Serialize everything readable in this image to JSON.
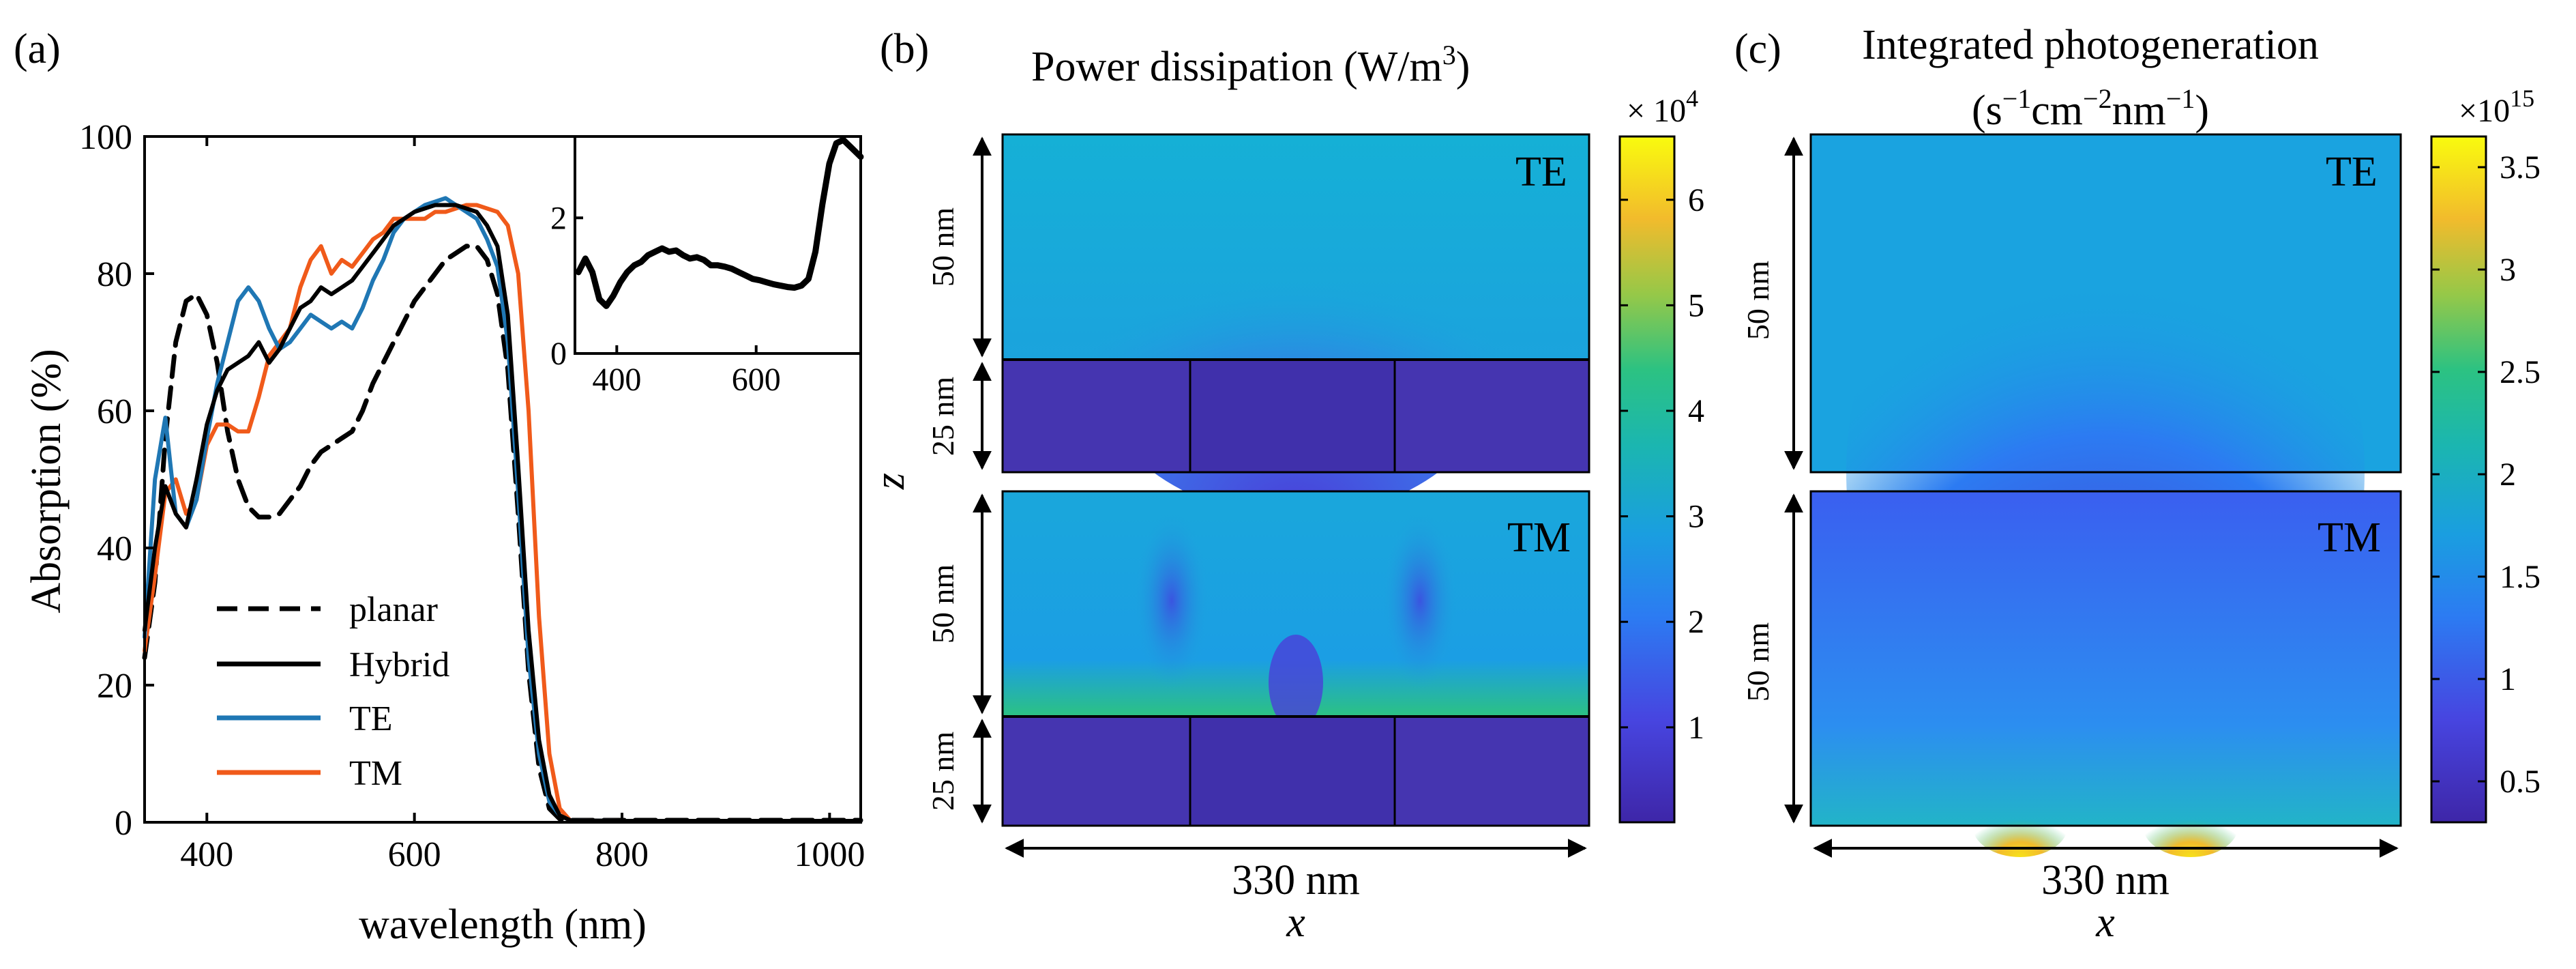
{
  "chart_data": [
    {
      "panel_label": "(a)",
      "type": "line",
      "xlabel": "wavelength (nm)",
      "ylabel": "Absorption (%)",
      "xlim": [
        340,
        1030
      ],
      "ylim": [
        0,
        100
      ],
      "xticks": [
        400,
        600,
        800,
        1000
      ],
      "yticks": [
        0,
        20,
        40,
        60,
        80,
        100
      ],
      "colors": {
        "planar": "#000000",
        "Hybrid": "#000000",
        "TE": "#1f77b4",
        "TM": "#f05a1a"
      },
      "legend": [
        {
          "label": "planar",
          "style": "dashed"
        },
        {
          "label": "Hybrid",
          "style": "solid"
        },
        {
          "label": "TE",
          "style": "solid"
        },
        {
          "label": "TM",
          "style": "solid"
        }
      ],
      "series": [
        {
          "name": "planar",
          "x": [
            340,
            350,
            360,
            370,
            380,
            390,
            400,
            410,
            420,
            430,
            440,
            450,
            460,
            470,
            480,
            490,
            500,
            510,
            520,
            530,
            540,
            550,
            560,
            570,
            580,
            590,
            600,
            610,
            620,
            630,
            640,
            650,
            660,
            670,
            680,
            690,
            700,
            710,
            720,
            730,
            740,
            750,
            800,
            850,
            900,
            950,
            1000,
            1030
          ],
          "y": [
            24,
            35,
            56,
            70,
            76,
            77,
            74,
            67,
            57,
            50,
            46,
            44.5,
            44.5,
            45,
            47,
            49,
            52,
            54,
            55,
            56,
            57,
            60,
            64,
            67,
            70,
            73,
            76,
            78,
            80,
            82,
            83,
            84,
            84,
            82,
            77,
            66,
            45,
            22,
            8,
            2,
            0.5,
            0.3,
            0.3,
            0.3,
            0.3,
            0.3,
            0.3,
            0.3
          ]
        },
        {
          "name": "Hybrid",
          "x": [
            340,
            350,
            360,
            370,
            380,
            390,
            400,
            410,
            420,
            430,
            440,
            450,
            460,
            470,
            480,
            490,
            500,
            510,
            520,
            530,
            540,
            550,
            560,
            570,
            580,
            590,
            600,
            610,
            620,
            630,
            640,
            650,
            660,
            670,
            680,
            690,
            700,
            710,
            720,
            730,
            740,
            750,
            800,
            850,
            900,
            950,
            1000,
            1030
          ],
          "y": [
            28,
            40,
            49,
            45,
            43,
            50,
            58,
            63,
            66,
            67,
            68,
            70,
            67,
            69,
            72,
            75,
            76,
            78,
            77,
            78,
            79,
            81,
            83,
            85,
            87,
            88,
            89,
            89.5,
            90,
            90,
            90,
            89.5,
            89,
            87,
            84,
            74,
            52,
            28,
            12,
            4,
            1,
            0.3,
            0.2,
            0.2,
            0.2,
            0.2,
            0.2,
            0.2
          ]
        },
        {
          "name": "TE",
          "x": [
            340,
            350,
            360,
            370,
            380,
            390,
            400,
            410,
            420,
            430,
            440,
            450,
            460,
            470,
            480,
            490,
            500,
            510,
            520,
            530,
            540,
            550,
            560,
            570,
            580,
            590,
            600,
            610,
            620,
            630,
            640,
            650,
            660,
            670,
            680,
            690,
            700,
            710,
            720,
            730,
            740,
            750,
            800,
            850,
            900,
            950,
            1000,
            1030
          ],
          "y": [
            27,
            50,
            59,
            45,
            43,
            47,
            56,
            64,
            70,
            76,
            78,
            76,
            72,
            69,
            70,
            72,
            74,
            73,
            72,
            73,
            72,
            75,
            79,
            82,
            86,
            88,
            89,
            90,
            90.5,
            91,
            90,
            89,
            88,
            85,
            81,
            70,
            48,
            24,
            10,
            3,
            1,
            0.3,
            0.2,
            0.2,
            0.2,
            0.2,
            0.2,
            0.2
          ]
        },
        {
          "name": "TM",
          "x": [
            340,
            350,
            360,
            370,
            380,
            390,
            400,
            410,
            420,
            430,
            440,
            450,
            460,
            470,
            480,
            490,
            500,
            510,
            520,
            530,
            540,
            550,
            560,
            570,
            580,
            590,
            600,
            610,
            620,
            630,
            640,
            650,
            660,
            670,
            680,
            690,
            700,
            710,
            720,
            730,
            740,
            750,
            800,
            850,
            900,
            950,
            1000,
            1030
          ],
          "y": [
            25,
            36,
            48,
            50,
            45,
            47,
            55,
            58,
            58,
            57,
            57,
            62,
            68,
            70,
            72,
            78,
            82,
            84,
            80,
            82,
            81,
            83,
            85,
            86,
            88,
            88,
            88,
            88,
            89,
            89,
            89.5,
            90,
            90,
            89.5,
            89,
            87,
            80,
            60,
            30,
            10,
            2,
            0.3,
            0.2,
            0.2,
            0.2,
            0.2,
            0.2,
            0.2
          ]
        }
      ],
      "inset": {
        "type": "line",
        "xlim": [
          340,
          750
        ],
        "ylim": [
          0,
          3.2
        ],
        "xticks": [
          400,
          600
        ],
        "yticks": [
          0,
          2
        ],
        "series": [
          {
            "name": "inset",
            "x": [
              345,
              355,
              365,
              375,
              385,
              395,
              405,
              415,
              425,
              435,
              445,
              455,
              465,
              475,
              485,
              495,
              505,
              515,
              525,
              535,
              545,
              555,
              565,
              575,
              585,
              595,
              605,
              615,
              625,
              635,
              645,
              655,
              665,
              675,
              685,
              695,
              705,
              715,
              725,
              735,
              745,
              750
            ],
            "y": [
              1.2,
              1.4,
              1.2,
              0.8,
              0.7,
              0.85,
              1.05,
              1.2,
              1.3,
              1.35,
              1.45,
              1.5,
              1.55,
              1.5,
              1.52,
              1.45,
              1.4,
              1.42,
              1.38,
              1.3,
              1.3,
              1.28,
              1.25,
              1.2,
              1.15,
              1.1,
              1.08,
              1.05,
              1.02,
              1.0,
              0.98,
              0.97,
              1.0,
              1.1,
              1.5,
              2.2,
              2.8,
              3.1,
              3.15,
              3.05,
              2.95,
              2.9
            ]
          }
        ]
      }
    },
    {
      "panel_label": "(b)",
      "type": "heatmap",
      "title": "Power dissipation (W/m",
      "title_superscript": "3",
      "title_suffix": ")",
      "zlabel": "z",
      "xlabel": "x",
      "span_label": "330 nm",
      "panels": [
        {
          "mode": "TE",
          "layers": [
            {
              "label": "50 nm"
            },
            {
              "label": "25 nm"
            }
          ]
        },
        {
          "mode": "TM",
          "layers": [
            {
              "label": "50 nm"
            },
            {
              "label": "25 nm"
            }
          ]
        }
      ],
      "colorbar": {
        "multiplier": "× 10",
        "exponent": "4",
        "range": [
          0.1,
          6.6
        ],
        "ticks": [
          "1",
          "2",
          "3",
          "4",
          "5",
          "6"
        ]
      }
    },
    {
      "panel_label": "(c)",
      "type": "heatmap",
      "title": "Integrated photogeneration",
      "units": {
        "a": "(s",
        "a_sup": "−1",
        "b": "cm",
        "b_sup": "−2",
        "c": "nm",
        "c_sup": "−1",
        "d": ")"
      },
      "xlabel": "x",
      "span_label": "330 nm",
      "panels": [
        {
          "mode": "TE",
          "layers": [
            {
              "label": "50 nm"
            }
          ]
        },
        {
          "mode": "TM",
          "layers": [
            {
              "label": "50 nm"
            }
          ]
        }
      ],
      "colorbar": {
        "multiplier": "×10",
        "exponent": "15",
        "range": [
          0.3,
          3.65
        ],
        "ticks": [
          "0.5",
          "1",
          "1.5",
          "2",
          "2.5",
          "3",
          "3.5"
        ]
      }
    }
  ]
}
